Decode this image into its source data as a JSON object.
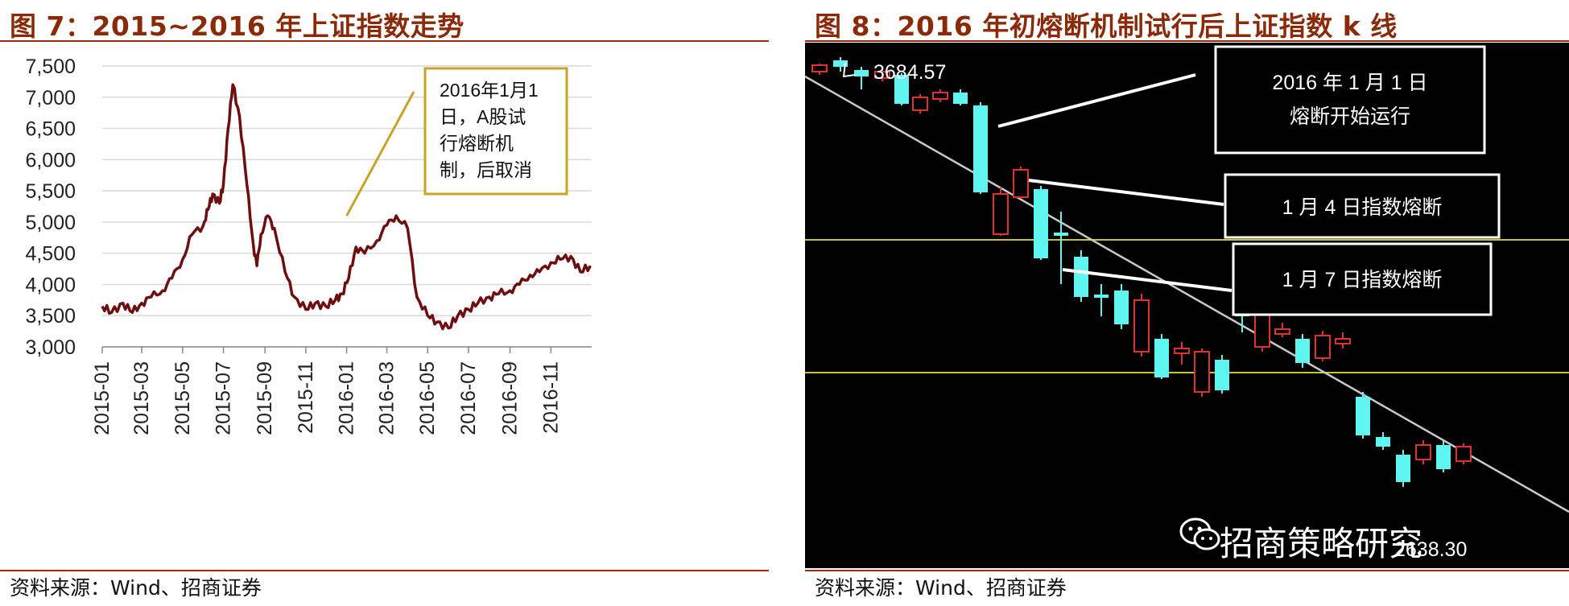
{
  "left": {
    "title": "图 7：2015~2016 年上证指数走势",
    "source": "资料来源：Wind、招商证券",
    "annotation": [
      "2016年1月1",
      "日，A股试",
      "行熔断机",
      "制，后取消"
    ]
  },
  "right": {
    "title": "图 8：2016 年初熔断机制试行后上证指数 k 线",
    "source": "资料来源：Wind、招商证券",
    "high_label": "3684.57",
    "low_label": "2638.30",
    "watermark": "招商策略研究",
    "callouts": [
      {
        "lines": [
          "2016 年 1 月 1 日",
          "熔断开始运行"
        ]
      },
      {
        "lines": [
          "1 月 4 日指数熔断"
        ]
      },
      {
        "lines": [
          "1 月 7 日指数熔断"
        ]
      }
    ]
  },
  "colors": {
    "title": "#8a2a08",
    "line": "#6e0f0f",
    "annotation_border": "#c9a227",
    "candle_up": "#e0312c",
    "candle_down": "#5ff5f0",
    "hline": "#c6c62a"
  },
  "chart_data": [
    {
      "type": "line",
      "title": "",
      "xlabel": "",
      "ylabel": "",
      "ylim": [
        3000,
        7500
      ],
      "yticks": [
        "3,000",
        "3,500",
        "4,000",
        "4,500",
        "5,000",
        "5,500",
        "6,000",
        "6,500",
        "7,000",
        "7,500"
      ],
      "xticks": [
        "2015-01",
        "2015-03",
        "2015-05",
        "2015-07",
        "2015-09",
        "2015-11",
        "2016-01",
        "2016-03",
        "2016-05",
        "2016-07",
        "2016-09",
        "2016-11"
      ],
      "x": [
        "2015-01-01",
        "2015-01-15",
        "2015-02-01",
        "2015-02-15",
        "2015-03-01",
        "2015-03-15",
        "2015-04-01",
        "2015-04-15",
        "2015-05-01",
        "2015-05-15",
        "2015-06-01",
        "2015-06-08",
        "2015-06-15",
        "2015-06-25",
        "2015-07-01",
        "2015-07-08",
        "2015-07-15",
        "2015-07-25",
        "2015-08-05",
        "2015-08-15",
        "2015-08-20",
        "2015-08-26",
        "2015-09-05",
        "2015-09-15",
        "2015-10-01",
        "2015-10-15",
        "2015-11-01",
        "2015-11-15",
        "2015-12-01",
        "2015-12-15",
        "2015-12-25",
        "2016-01-04",
        "2016-01-15",
        "2016-01-28",
        "2016-02-15",
        "2016-03-01",
        "2016-03-15",
        "2016-04-01",
        "2016-04-15",
        "2016-05-01",
        "2016-05-15",
        "2016-06-01",
        "2016-06-15",
        "2016-07-01",
        "2016-07-15",
        "2016-08-01",
        "2016-08-15",
        "2016-09-01",
        "2016-09-15",
        "2016-10-01",
        "2016-10-15",
        "2016-11-01",
        "2016-11-15",
        "2016-12-01",
        "2016-12-15",
        "2016-12-30"
      ],
      "series": [
        {
          "values": [
            3650,
            3550,
            3700,
            3550,
            3700,
            3800,
            3900,
            4100,
            4400,
            4800,
            4950,
            5200,
            5450,
            5300,
            5600,
            6500,
            7200,
            6700,
            5600,
            4600,
            4300,
            4800,
            5100,
            4900,
            4200,
            3800,
            3600,
            3700,
            3650,
            3750,
            3850,
            4100,
            4600,
            4500,
            4700,
            4950,
            5100,
            4900,
            3800,
            3500,
            3400,
            3300,
            3500,
            3600,
            3700,
            3800,
            3850,
            3900,
            4000,
            4150,
            4200,
            4350,
            4400,
            4450,
            4200,
            4300
          ]
        }
      ]
    },
    {
      "type": "candlestick",
      "title": "",
      "annotations": [
        "3684.57",
        "2638.30"
      ]
    }
  ]
}
